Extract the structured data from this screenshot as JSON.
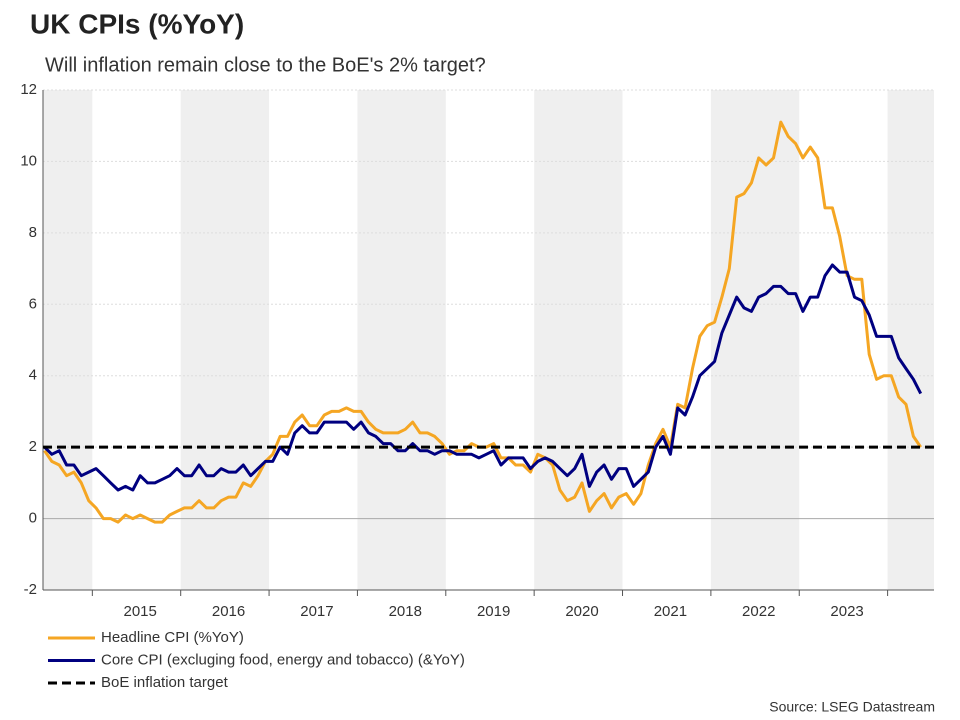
{
  "chart_data": {
    "type": "line",
    "title": "UK CPIs (%YoY)",
    "subtitle": "Will inflation remain close to the BoE's 2% target?",
    "source": "Source: LSEG Datastream",
    "categories": [
      null,
      null,
      null,
      null,
      null,
      null,
      null,
      null,
      null,
      null,
      null,
      null,
      null,
      "2015",
      null,
      null,
      null,
      null,
      null,
      null,
      null,
      null,
      null,
      null,
      null,
      "2016",
      null,
      null,
      null,
      null,
      null,
      null,
      null,
      null,
      null,
      null,
      null,
      "2017",
      null,
      null,
      null,
      null,
      null,
      null,
      null,
      null,
      null,
      null,
      null,
      "2018",
      null,
      null,
      null,
      null,
      null,
      null,
      null,
      null,
      null,
      null,
      null,
      "2019",
      null,
      null,
      null,
      null,
      null,
      null,
      null,
      null,
      null,
      null,
      null,
      "2020",
      null,
      null,
      null,
      null,
      null,
      null,
      null,
      null,
      null,
      null,
      null,
      "2021",
      null,
      null,
      null,
      null,
      null,
      null,
      null,
      null,
      null,
      null,
      null,
      "2022",
      null,
      null,
      null,
      null,
      null,
      null,
      null,
      null,
      null,
      null,
      null,
      "2023",
      null,
      null,
      null,
      null,
      null,
      null,
      null,
      null,
      null,
      null
    ],
    "series": [
      {
        "name": "Headline CPI (%YoY)",
        "color": "#f5a623",
        "values": [
          1.9,
          1.6,
          1.5,
          1.2,
          1.3,
          1.0,
          0.5,
          0.3,
          0.0,
          0.0,
          -0.1,
          0.1,
          0.0,
          0.1,
          0.0,
          -0.1,
          -0.1,
          0.1,
          0.2,
          0.3,
          0.3,
          0.5,
          0.3,
          0.3,
          0.5,
          0.6,
          0.6,
          1.0,
          0.9,
          1.2,
          1.6,
          1.8,
          2.3,
          2.3,
          2.7,
          2.9,
          2.6,
          2.6,
          2.9,
          3.0,
          3.0,
          3.1,
          3.0,
          3.0,
          2.7,
          2.5,
          2.4,
          2.4,
          2.4,
          2.5,
          2.7,
          2.4,
          2.4,
          2.3,
          2.1,
          1.8,
          1.9,
          1.9,
          2.1,
          2.0,
          2.0,
          2.1,
          1.7,
          1.7,
          1.5,
          1.5,
          1.3,
          1.8,
          1.7,
          1.5,
          0.8,
          0.5,
          0.6,
          1.0,
          0.2,
          0.5,
          0.7,
          0.3,
          0.6,
          0.7,
          0.4,
          0.7,
          1.5,
          2.1,
          2.5,
          2.0,
          3.2,
          3.1,
          4.2,
          5.1,
          5.4,
          5.5,
          6.2,
          7.0,
          9.0,
          9.1,
          9.4,
          10.1,
          9.9,
          10.1,
          11.1,
          10.7,
          10.5,
          10.1,
          10.4,
          10.1,
          8.7,
          8.7,
          7.9,
          6.8,
          6.7,
          6.7,
          4.6,
          3.9,
          4.0,
          4.0,
          3.4,
          3.2,
          2.3,
          2.0
        ]
      },
      {
        "name": "Core CPI (excluging food, energy and tobacco) (&YoY)",
        "color": "#000080",
        "values": [
          2.0,
          1.8,
          1.9,
          1.5,
          1.5,
          1.2,
          1.3,
          1.4,
          1.2,
          1.0,
          0.8,
          0.9,
          0.8,
          1.2,
          1.0,
          1.0,
          1.1,
          1.2,
          1.4,
          1.2,
          1.2,
          1.5,
          1.2,
          1.2,
          1.4,
          1.3,
          1.3,
          1.5,
          1.2,
          1.4,
          1.6,
          1.6,
          2.0,
          1.8,
          2.4,
          2.6,
          2.4,
          2.4,
          2.7,
          2.7,
          2.7,
          2.7,
          2.5,
          2.7,
          2.4,
          2.3,
          2.1,
          2.1,
          1.9,
          1.9,
          2.1,
          1.9,
          1.9,
          1.8,
          1.9,
          1.9,
          1.8,
          1.8,
          1.8,
          1.7,
          1.8,
          1.9,
          1.5,
          1.7,
          1.7,
          1.7,
          1.4,
          1.6,
          1.7,
          1.6,
          1.4,
          1.2,
          1.4,
          1.8,
          0.9,
          1.3,
          1.5,
          1.1,
          1.4,
          1.4,
          0.9,
          1.1,
          1.3,
          2.0,
          2.3,
          1.8,
          3.1,
          2.9,
          3.4,
          4.0,
          4.2,
          4.4,
          5.2,
          5.7,
          6.2,
          5.9,
          5.8,
          6.2,
          6.3,
          6.5,
          6.5,
          6.3,
          6.3,
          5.8,
          6.2,
          6.2,
          6.8,
          7.1,
          6.9,
          6.9,
          6.2,
          6.1,
          5.7,
          5.1,
          5.1,
          5.1,
          4.5,
          4.2,
          3.9,
          3.5
        ]
      }
    ],
    "target": {
      "name": "BoE inflation target",
      "value": 2,
      "color": "#000000"
    },
    "ylim": [
      -2,
      12
    ],
    "yticks": [
      -2,
      0,
      2,
      4,
      6,
      8,
      10,
      12
    ],
    "grid": true
  }
}
